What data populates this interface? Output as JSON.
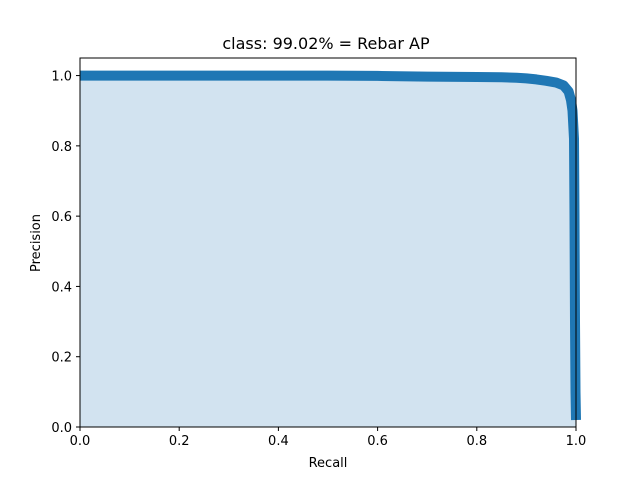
{
  "chart_data": {
    "type": "area",
    "title": "class: 99.02% = Rebar AP",
    "xlabel": "Recall",
    "ylabel": "Precision",
    "xlim": [
      0.0,
      1.0
    ],
    "ylim": [
      0.0,
      1.05
    ],
    "x_ticks": [
      "0.0",
      "0.2",
      "0.4",
      "0.6",
      "0.8",
      "1.0"
    ],
    "y_ticks": [
      "0.0",
      "0.2",
      "0.4",
      "0.6",
      "0.8",
      "1.0"
    ],
    "grid": false,
    "legend": "none",
    "colors": {
      "line": "#1f77b4",
      "fill": "#d2e3f0"
    },
    "series": [
      {
        "recall": [
          0.0,
          0.1,
          0.2,
          0.3,
          0.4,
          0.5,
          0.6,
          0.7,
          0.8,
          0.85,
          0.88,
          0.9,
          0.92,
          0.94,
          0.96,
          0.975,
          0.985,
          0.99,
          0.993,
          0.996,
          0.997,
          0.998,
          0.999,
          1.0
        ],
        "precision": [
          1.0,
          1.0,
          1.0,
          1.0,
          1.0,
          1.0,
          0.999,
          0.997,
          0.996,
          0.995,
          0.994,
          0.992,
          0.989,
          0.985,
          0.98,
          0.972,
          0.955,
          0.93,
          0.9,
          0.82,
          0.6,
          0.3,
          0.1,
          0.02
        ]
      }
    ]
  }
}
